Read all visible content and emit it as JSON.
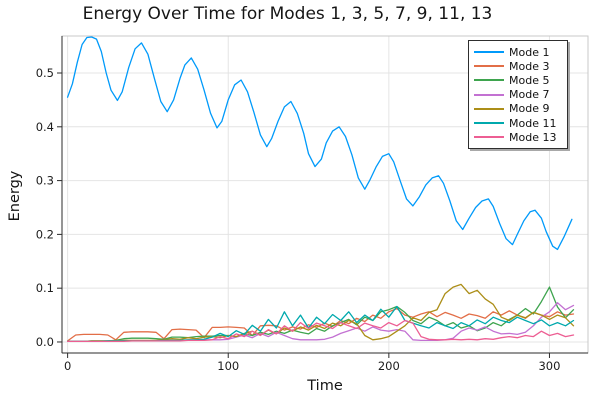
{
  "chart_data": {
    "type": "line",
    "title": "Energy Over Time for Modes 1, 3, 5, 7, 9, 11, 13",
    "xlabel": "Time",
    "ylabel": "Energy",
    "xlim": [
      -3.5,
      324
    ],
    "ylim": [
      -0.0205,
      0.5688
    ],
    "xticks": [
      0,
      100,
      200,
      300
    ],
    "xtick_labels": [
      "0",
      "100",
      "200",
      "300"
    ],
    "yticks": [
      0.0,
      0.1,
      0.2,
      0.3,
      0.4,
      0.5
    ],
    "ytick_labels": [
      "0.0",
      "0.1",
      "0.2",
      "0.3",
      "0.4",
      "0.5"
    ],
    "grid": true,
    "legend_position": "top-right",
    "style": {
      "background": "#ffffff",
      "grid_color": "#e4e4e4",
      "frame_color": "#c9c9c9",
      "spine_color": "#2b2b2b",
      "tick_label_color": "#1d1d1d",
      "title_color": "#151515"
    },
    "common_x": [
      0,
      5,
      10,
      15,
      20,
      25,
      30,
      35,
      40,
      45,
      50,
      55,
      60,
      65,
      70,
      75,
      80,
      85,
      90,
      95,
      100,
      105,
      110,
      115,
      120,
      125,
      130,
      135,
      140,
      145,
      150,
      155,
      160,
      165,
      170,
      175,
      180,
      185,
      190,
      195,
      200,
      205,
      210,
      215,
      220,
      225,
      230,
      235,
      240,
      245,
      250,
      255,
      260,
      265,
      270,
      275,
      280,
      285,
      290,
      295,
      300,
      305,
      310,
      315
    ],
    "series": [
      {
        "name": "Mode 1",
        "color": "#009AFA",
        "x": [
          0,
          3,
          6,
          9,
          12,
          15,
          18,
          21,
          24,
          27,
          31,
          34,
          38,
          42,
          46,
          50,
          54,
          58,
          62,
          66,
          70,
          73,
          77,
          81,
          85,
          89,
          93,
          96,
          100,
          104,
          108,
          112,
          116,
          120,
          124,
          127,
          131,
          135,
          139,
          143,
          147,
          150,
          154,
          158,
          161,
          165,
          169,
          173,
          177,
          181,
          185,
          188,
          192,
          196,
          200,
          203,
          207,
          211,
          215,
          219,
          223,
          227,
          231,
          234,
          238,
          242,
          246,
          250,
          254,
          258,
          262,
          265,
          269,
          273,
          277,
          280,
          284,
          288,
          291,
          295,
          298,
          302,
          305,
          309,
          314
        ],
        "y": [
          0.455,
          0.48,
          0.52,
          0.553,
          0.566,
          0.567,
          0.563,
          0.54,
          0.5,
          0.468,
          0.449,
          0.465,
          0.51,
          0.545,
          0.556,
          0.535,
          0.49,
          0.447,
          0.428,
          0.45,
          0.49,
          0.515,
          0.528,
          0.507,
          0.468,
          0.425,
          0.398,
          0.41,
          0.45,
          0.478,
          0.487,
          0.465,
          0.427,
          0.385,
          0.363,
          0.378,
          0.41,
          0.437,
          0.447,
          0.425,
          0.388,
          0.35,
          0.326,
          0.34,
          0.37,
          0.392,
          0.4,
          0.382,
          0.348,
          0.305,
          0.284,
          0.3,
          0.325,
          0.345,
          0.35,
          0.335,
          0.3,
          0.266,
          0.253,
          0.27,
          0.292,
          0.305,
          0.309,
          0.295,
          0.262,
          0.225,
          0.209,
          0.23,
          0.25,
          0.262,
          0.266,
          0.252,
          0.22,
          0.192,
          0.181,
          0.2,
          0.225,
          0.242,
          0.245,
          0.23,
          0.205,
          0.178,
          0.172,
          0.195,
          0.228
        ]
      },
      {
        "name": "Mode 3",
        "color": "#E26E47",
        "y": [
          0.002,
          0.013,
          0.014,
          0.014,
          0.014,
          0.013,
          0.004,
          0.018,
          0.019,
          0.019,
          0.019,
          0.018,
          0.006,
          0.023,
          0.024,
          0.023,
          0.022,
          0.008,
          0.027,
          0.027,
          0.028,
          0.027,
          0.026,
          0.012,
          0.03,
          0.031,
          0.03,
          0.022,
          0.028,
          0.024,
          0.032,
          0.027,
          0.035,
          0.029,
          0.04,
          0.034,
          0.044,
          0.038,
          0.05,
          0.044,
          0.056,
          0.062,
          0.05,
          0.046,
          0.052,
          0.056,
          0.047,
          0.055,
          0.05,
          0.044,
          0.052,
          0.049,
          0.044,
          0.056,
          0.05,
          0.058,
          0.05,
          0.044,
          0.055,
          0.05,
          0.047,
          0.056,
          0.05,
          0.052
        ]
      },
      {
        "name": "Mode 5",
        "color": "#3EA44E",
        "y": [
          0.001,
          0.001,
          0.001,
          0.002,
          0.002,
          0.002,
          0.003,
          0.006,
          0.007,
          0.007,
          0.007,
          0.006,
          0.005,
          0.009,
          0.009,
          0.008,
          0.01,
          0.011,
          0.011,
          0.012,
          0.012,
          0.01,
          0.015,
          0.012,
          0.018,
          0.014,
          0.02,
          0.016,
          0.022,
          0.018,
          0.015,
          0.025,
          0.02,
          0.03,
          0.036,
          0.042,
          0.032,
          0.046,
          0.04,
          0.056,
          0.06,
          0.066,
          0.055,
          0.04,
          0.034,
          0.046,
          0.04,
          0.03,
          0.036,
          0.026,
          0.03,
          0.021,
          0.026,
          0.036,
          0.03,
          0.042,
          0.05,
          0.062,
          0.052,
          0.075,
          0.102,
          0.065,
          0.045,
          0.06
        ]
      },
      {
        "name": "Mode 7",
        "color": "#C371D2",
        "y": [
          0.001,
          0.001,
          0.001,
          0.001,
          0.001,
          0.001,
          0.001,
          0.002,
          0.002,
          0.002,
          0.002,
          0.002,
          0.002,
          0.003,
          0.003,
          0.003,
          0.003,
          0.004,
          0.004,
          0.004,
          0.005,
          0.009,
          0.013,
          0.008,
          0.016,
          0.01,
          0.018,
          0.012,
          0.006,
          0.004,
          0.004,
          0.004,
          0.005,
          0.009,
          0.016,
          0.021,
          0.026,
          0.02,
          0.028,
          0.022,
          0.02,
          0.023,
          0.02,
          0.004,
          0.003,
          0.003,
          0.003,
          0.004,
          0.007,
          0.02,
          0.026,
          0.022,
          0.028,
          0.02,
          0.015,
          0.016,
          0.014,
          0.018,
          0.03,
          0.046,
          0.056,
          0.073,
          0.06,
          0.068
        ]
      },
      {
        "name": "Mode 9",
        "color": "#AC8E18",
        "y": [
          0.001,
          0.001,
          0.001,
          0.002,
          0.002,
          0.002,
          0.003,
          0.003,
          0.003,
          0.003,
          0.003,
          0.003,
          0.004,
          0.006,
          0.005,
          0.008,
          0.006,
          0.009,
          0.01,
          0.008,
          0.012,
          0.01,
          0.016,
          0.02,
          0.013,
          0.022,
          0.015,
          0.026,
          0.02,
          0.028,
          0.022,
          0.031,
          0.025,
          0.035,
          0.03,
          0.04,
          0.034,
          0.012,
          0.004,
          0.006,
          0.01,
          0.02,
          0.03,
          0.045,
          0.04,
          0.055,
          0.06,
          0.09,
          0.102,
          0.107,
          0.09,
          0.096,
          0.08,
          0.07,
          0.046,
          0.04,
          0.05,
          0.045,
          0.055,
          0.05,
          0.042,
          0.05,
          0.045,
          0.03
        ]
      },
      {
        "name": "Mode 11",
        "color": "#00A9AD",
        "y": [
          0.001,
          0.001,
          0.001,
          0.001,
          0.001,
          0.002,
          0.002,
          0.002,
          0.002,
          0.002,
          0.002,
          0.002,
          0.003,
          0.003,
          0.003,
          0.004,
          0.004,
          0.005,
          0.009,
          0.016,
          0.01,
          0.021,
          0.014,
          0.031,
          0.02,
          0.042,
          0.026,
          0.056,
          0.03,
          0.05,
          0.026,
          0.046,
          0.034,
          0.051,
          0.04,
          0.056,
          0.036,
          0.05,
          0.04,
          0.061,
          0.046,
          0.066,
          0.04,
          0.035,
          0.03,
          0.026,
          0.036,
          0.03,
          0.025,
          0.036,
          0.03,
          0.041,
          0.034,
          0.046,
          0.04,
          0.036,
          0.046,
          0.04,
          0.034,
          0.041,
          0.03,
          0.036,
          0.03,
          0.04
        ]
      },
      {
        "name": "Mode 13",
        "color": "#ED5E93",
        "y": [
          0.001,
          0.001,
          0.001,
          0.001,
          0.001,
          0.001,
          0.001,
          0.001,
          0.002,
          0.002,
          0.002,
          0.002,
          0.002,
          0.002,
          0.002,
          0.003,
          0.003,
          0.003,
          0.004,
          0.01,
          0.006,
          0.015,
          0.01,
          0.02,
          0.012,
          0.023,
          0.015,
          0.03,
          0.02,
          0.036,
          0.025,
          0.035,
          0.03,
          0.025,
          0.036,
          0.03,
          0.025,
          0.035,
          0.03,
          0.026,
          0.036,
          0.03,
          0.04,
          0.035,
          0.01,
          0.005,
          0.004,
          0.004,
          0.005,
          0.004,
          0.005,
          0.004,
          0.006,
          0.005,
          0.008,
          0.01,
          0.008,
          0.012,
          0.01,
          0.02,
          0.012,
          0.016,
          0.01,
          0.013
        ]
      }
    ]
  }
}
